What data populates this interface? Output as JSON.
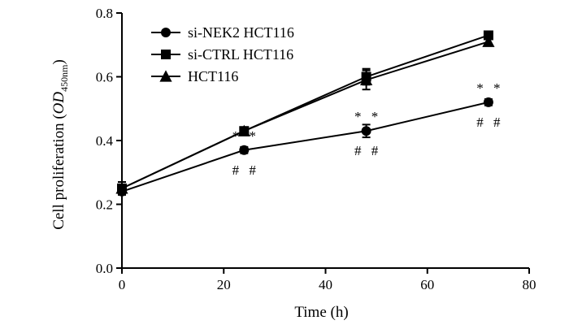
{
  "chart_data": {
    "type": "line",
    "title": "",
    "xlabel": "Time (h)",
    "ylabel": {
      "main": "Cell proliferation (",
      "od": "OD",
      "sub": "450nm",
      "close": ")"
    },
    "xlim": [
      0,
      80
    ],
    "ylim": [
      0.0,
      0.8
    ],
    "xticks": [
      "0",
      "20",
      "40",
      "60",
      "80"
    ],
    "yticks": [
      "0.0",
      "0.2",
      "0.4",
      "0.6",
      "0.8"
    ],
    "grid": false,
    "legend_position": "top-left",
    "x": [
      0,
      24,
      48,
      72
    ],
    "series": [
      {
        "name": "si-NEK2 HCT116",
        "marker": "circle",
        "values": [
          0.24,
          0.37,
          0.43,
          0.52
        ],
        "errors": [
          0.01,
          0.01,
          0.02,
          0.01
        ]
      },
      {
        "name": "si-CTRL HCT116",
        "marker": "square",
        "values": [
          0.25,
          0.43,
          0.6,
          0.73
        ],
        "errors": [
          0.02,
          0.01,
          0.025,
          0.01
        ]
      },
      {
        "name": "HCT116",
        "marker": "triangle",
        "values": [
          0.25,
          0.43,
          0.59,
          0.71
        ],
        "errors": [
          0.02,
          0.01,
          0.03,
          0.01
        ]
      }
    ],
    "annotations": [
      {
        "text": "* *",
        "x": 24,
        "y": 0.37,
        "position": "above"
      },
      {
        "text": "# #",
        "x": 24,
        "y": 0.37,
        "position": "below"
      },
      {
        "text": "* *",
        "x": 48,
        "y": 0.43,
        "position": "above"
      },
      {
        "text": "# #",
        "x": 48,
        "y": 0.43,
        "position": "below"
      },
      {
        "text": "* *",
        "x": 72,
        "y": 0.52,
        "position": "above"
      },
      {
        "text": "# #",
        "x": 72,
        "y": 0.52,
        "position": "below"
      }
    ],
    "colors": {
      "line": "#000000",
      "background": "#ffffff"
    }
  }
}
